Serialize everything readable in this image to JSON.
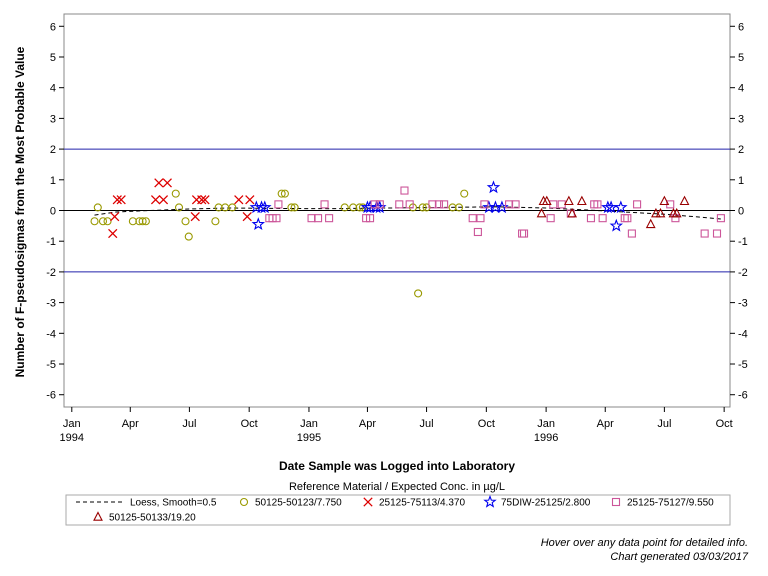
{
  "chart_data": {
    "type": "scatter",
    "xlabel": "Date Sample was Logged into Laboratory",
    "ylabel": "Number of F-pseudosigmas from the Most Probable Value",
    "ylim": [
      -6.4,
      6.4
    ],
    "y_ticks": [
      -6,
      -5,
      -4,
      -3,
      -2,
      -1,
      0,
      1,
      2,
      3,
      4,
      5,
      6
    ],
    "reference_lines": [
      {
        "y": 2,
        "color": "#2222aa"
      },
      {
        "y": -2,
        "color": "#2222aa"
      },
      {
        "y": 0,
        "color": "#000000"
      }
    ],
    "x_range": [
      "1993-12-20",
      "1996-10-10"
    ],
    "x_ticks": [
      {
        "date": "1994-01-01",
        "label": "Jan",
        "year": "1994"
      },
      {
        "date": "1994-04-01",
        "label": "Apr",
        "year": ""
      },
      {
        "date": "1994-07-01",
        "label": "Jul",
        "year": ""
      },
      {
        "date": "1994-10-01",
        "label": "Oct",
        "year": ""
      },
      {
        "date": "1995-01-01",
        "label": "Jan",
        "year": "1995"
      },
      {
        "date": "1995-04-01",
        "label": "Apr",
        "year": ""
      },
      {
        "date": "1995-07-01",
        "label": "Jul",
        "year": ""
      },
      {
        "date": "1995-10-01",
        "label": "Oct",
        "year": ""
      },
      {
        "date": "1996-01-01",
        "label": "Jan",
        "year": "1996"
      },
      {
        "date": "1996-04-01",
        "label": "Apr",
        "year": ""
      },
      {
        "date": "1996-07-01",
        "label": "Jul",
        "year": ""
      },
      {
        "date": "1996-10-01",
        "label": "Oct",
        "year": ""
      }
    ],
    "legend_title": "Reference Material / Expected Conc. in µg/L",
    "legend_placement": "bottom",
    "loess": {
      "name": "Loess, Smooth=0.5",
      "points": [
        {
          "x": "1994-02-05",
          "y": -0.15
        },
        {
          "x": "1994-03-10",
          "y": -0.05
        },
        {
          "x": "1994-05-01",
          "y": 0.0
        },
        {
          "x": "1994-07-01",
          "y": 0.05
        },
        {
          "x": "1994-09-01",
          "y": 0.08
        },
        {
          "x": "1994-11-01",
          "y": 0.07
        },
        {
          "x": "1995-02-01",
          "y": 0.06
        },
        {
          "x": "1995-05-01",
          "y": 0.08
        },
        {
          "x": "1995-08-01",
          "y": 0.1
        },
        {
          "x": "1995-10-15",
          "y": 0.12
        },
        {
          "x": "1996-01-01",
          "y": 0.08
        },
        {
          "x": "1996-03-01",
          "y": 0.02
        },
        {
          "x": "1996-05-01",
          "y": -0.05
        },
        {
          "x": "1996-07-01",
          "y": -0.12
        },
        {
          "x": "1996-08-15",
          "y": -0.2
        },
        {
          "x": "1996-09-28",
          "y": -0.28
        }
      ]
    },
    "series": [
      {
        "name": "50125-50123/7.750",
        "marker": "circle",
        "color": "#999900",
        "points": [
          {
            "x": "1994-02-05",
            "y": -0.35
          },
          {
            "x": "1994-02-10",
            "y": 0.1
          },
          {
            "x": "1994-02-18",
            "y": -0.35
          },
          {
            "x": "1994-02-25",
            "y": -0.35
          },
          {
            "x": "1994-04-05",
            "y": -0.35
          },
          {
            "x": "1994-04-15",
            "y": -0.35
          },
          {
            "x": "1994-04-20",
            "y": -0.35
          },
          {
            "x": "1994-04-25",
            "y": -0.35
          },
          {
            "x": "1994-06-10",
            "y": 0.55
          },
          {
            "x": "1994-06-15",
            "y": 0.1
          },
          {
            "x": "1994-06-25",
            "y": -0.35
          },
          {
            "x": "1994-06-30",
            "y": -0.85
          },
          {
            "x": "1994-08-10",
            "y": -0.35
          },
          {
            "x": "1994-08-15",
            "y": 0.1
          },
          {
            "x": "1994-08-25",
            "y": 0.1
          },
          {
            "x": "1994-09-05",
            "y": 0.1
          },
          {
            "x": "1994-11-20",
            "y": 0.55
          },
          {
            "x": "1994-11-25",
            "y": 0.55
          },
          {
            "x": "1994-12-05",
            "y": 0.1
          },
          {
            "x": "1994-12-10",
            "y": 0.1
          },
          {
            "x": "1995-02-25",
            "y": 0.1
          },
          {
            "x": "1995-03-10",
            "y": 0.1
          },
          {
            "x": "1995-03-20",
            "y": 0.1
          },
          {
            "x": "1995-03-25",
            "y": 0.1
          },
          {
            "x": "1995-06-10",
            "y": 0.1
          },
          {
            "x": "1995-06-18",
            "y": -2.7
          },
          {
            "x": "1995-06-25",
            "y": 0.1
          },
          {
            "x": "1995-07-01",
            "y": 0.1
          },
          {
            "x": "1995-08-10",
            "y": 0.1
          },
          {
            "x": "1995-08-20",
            "y": 0.1
          },
          {
            "x": "1995-08-28",
            "y": 0.55
          }
        ]
      },
      {
        "name": "25125-75113/4.370",
        "marker": "x",
        "color": "#dd0000",
        "points": [
          {
            "x": "1994-03-05",
            "y": -0.75
          },
          {
            "x": "1994-03-08",
            "y": -0.2
          },
          {
            "x": "1994-03-12",
            "y": 0.35
          },
          {
            "x": "1994-03-18",
            "y": 0.35
          },
          {
            "x": "1994-05-10",
            "y": 0.35
          },
          {
            "x": "1994-05-15",
            "y": 0.9
          },
          {
            "x": "1994-05-22",
            "y": 0.35
          },
          {
            "x": "1994-05-28",
            "y": 0.9
          },
          {
            "x": "1994-07-10",
            "y": -0.2
          },
          {
            "x": "1994-07-12",
            "y": 0.35
          },
          {
            "x": "1994-07-20",
            "y": 0.35
          },
          {
            "x": "1994-07-25",
            "y": 0.35
          },
          {
            "x": "1994-09-15",
            "y": 0.35
          },
          {
            "x": "1994-09-28",
            "y": -0.2
          },
          {
            "x": "1994-10-02",
            "y": 0.35
          }
        ]
      },
      {
        "name": "75DIW-25125/2.800",
        "marker": "star",
        "color": "#0000ee",
        "points": [
          {
            "x": "1994-10-12",
            "y": 0.1
          },
          {
            "x": "1994-10-15",
            "y": -0.45
          },
          {
            "x": "1994-10-20",
            "y": 0.1
          },
          {
            "x": "1994-10-25",
            "y": 0.1
          },
          {
            "x": "1995-04-01",
            "y": 0.1
          },
          {
            "x": "1995-04-05",
            "y": 0.1
          },
          {
            "x": "1995-04-15",
            "y": 0.1
          },
          {
            "x": "1995-04-20",
            "y": 0.1
          },
          {
            "x": "1995-10-05",
            "y": 0.1
          },
          {
            "x": "1995-10-12",
            "y": 0.75
          },
          {
            "x": "1995-10-15",
            "y": 0.1
          },
          {
            "x": "1995-10-25",
            "y": 0.1
          },
          {
            "x": "1996-04-05",
            "y": 0.1
          },
          {
            "x": "1996-04-10",
            "y": 0.1
          },
          {
            "x": "1996-04-18",
            "y": -0.5
          },
          {
            "x": "1996-04-25",
            "y": 0.1
          }
        ]
      },
      {
        "name": "25125-75127/9.550",
        "marker": "square",
        "color": "#cc5599",
        "points": [
          {
            "x": "1994-11-01",
            "y": -0.25
          },
          {
            "x": "1994-11-06",
            "y": -0.25
          },
          {
            "x": "1994-11-12",
            "y": -0.25
          },
          {
            "x": "1994-11-15",
            "y": 0.2
          },
          {
            "x": "1995-01-05",
            "y": -0.25
          },
          {
            "x": "1995-01-15",
            "y": -0.25
          },
          {
            "x": "1995-01-25",
            "y": 0.2
          },
          {
            "x": "1995-02-01",
            "y": -0.25
          },
          {
            "x": "1995-03-30",
            "y": -0.25
          },
          {
            "x": "1995-04-05",
            "y": -0.25
          },
          {
            "x": "1995-04-12",
            "y": 0.2
          },
          {
            "x": "1995-04-20",
            "y": 0.2
          },
          {
            "x": "1995-05-20",
            "y": 0.2
          },
          {
            "x": "1995-05-28",
            "y": 0.65
          },
          {
            "x": "1995-06-05",
            "y": 0.2
          },
          {
            "x": "1995-07-10",
            "y": 0.2
          },
          {
            "x": "1995-07-20",
            "y": 0.2
          },
          {
            "x": "1995-07-28",
            "y": 0.2
          },
          {
            "x": "1995-09-10",
            "y": -0.25
          },
          {
            "x": "1995-09-18",
            "y": -0.7
          },
          {
            "x": "1995-09-22",
            "y": -0.25
          },
          {
            "x": "1995-09-28",
            "y": 0.2
          },
          {
            "x": "1995-11-05",
            "y": 0.2
          },
          {
            "x": "1995-11-15",
            "y": 0.2
          },
          {
            "x": "1995-11-25",
            "y": -0.75
          },
          {
            "x": "1995-11-28",
            "y": -0.75
          },
          {
            "x": "1996-01-08",
            "y": -0.25
          },
          {
            "x": "1996-01-12",
            "y": 0.2
          },
          {
            "x": "1996-01-25",
            "y": 0.2
          },
          {
            "x": "1996-02-08",
            "y": -0.1
          },
          {
            "x": "1996-03-10",
            "y": -0.25
          },
          {
            "x": "1996-03-15",
            "y": 0.2
          },
          {
            "x": "1996-03-20",
            "y": 0.2
          },
          {
            "x": "1996-03-28",
            "y": -0.25
          },
          {
            "x": "1996-05-01",
            "y": -0.25
          },
          {
            "x": "1996-05-05",
            "y": -0.25
          },
          {
            "x": "1996-05-12",
            "y": -0.75
          },
          {
            "x": "1996-05-20",
            "y": 0.2
          },
          {
            "x": "1996-07-10",
            "y": 0.2
          },
          {
            "x": "1996-07-18",
            "y": -0.25
          },
          {
            "x": "1996-09-01",
            "y": -0.75
          },
          {
            "x": "1996-09-20",
            "y": -0.75
          },
          {
            "x": "1996-09-26",
            "y": -0.25
          }
        ]
      },
      {
        "name": "50125-50133/19.20",
        "marker": "triangle",
        "color": "#990000",
        "points": [
          {
            "x": "1995-12-25",
            "y": -0.1
          },
          {
            "x": "1995-12-28",
            "y": 0.3
          },
          {
            "x": "1996-01-02",
            "y": 0.3
          },
          {
            "x": "1996-02-05",
            "y": 0.3
          },
          {
            "x": "1996-02-10",
            "y": -0.1
          },
          {
            "x": "1996-02-25",
            "y": 0.3
          },
          {
            "x": "1996-06-10",
            "y": -0.45
          },
          {
            "x": "1996-06-18",
            "y": -0.1
          },
          {
            "x": "1996-06-25",
            "y": -0.1
          },
          {
            "x": "1996-07-01",
            "y": 0.3
          },
          {
            "x": "1996-07-15",
            "y": -0.1
          },
          {
            "x": "1996-07-20",
            "y": -0.1
          },
          {
            "x": "1996-08-01",
            "y": 0.3
          }
        ]
      }
    ]
  },
  "footnotes": {
    "hover": "Hover over any data point for detailed info.",
    "generated": "Chart generated 03/03/2017"
  }
}
